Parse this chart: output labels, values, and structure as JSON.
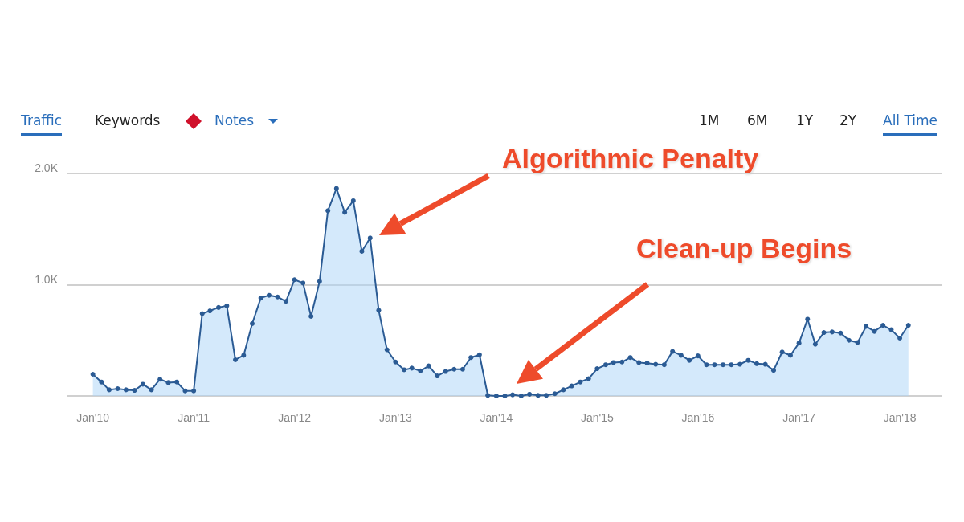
{
  "chart_data": {
    "type": "area",
    "x": [
      "2010-01",
      "2010-02",
      "2010-03",
      "2010-04",
      "2010-05",
      "2010-06",
      "2010-07",
      "2010-08",
      "2010-09",
      "2010-10",
      "2010-11",
      "2010-12",
      "2011-01",
      "2011-02",
      "2011-03",
      "2011-04",
      "2011-05",
      "2011-06",
      "2011-07",
      "2011-08",
      "2011-09",
      "2011-10",
      "2011-11",
      "2011-12",
      "2012-01",
      "2012-02",
      "2012-03",
      "2012-04",
      "2012-05",
      "2012-06",
      "2012-07",
      "2012-08",
      "2012-09",
      "2012-10",
      "2012-11",
      "2012-12",
      "2013-01",
      "2013-02",
      "2013-03",
      "2013-04",
      "2013-05",
      "2013-06",
      "2013-07",
      "2013-08",
      "2013-09",
      "2013-10",
      "2013-11",
      "2013-12",
      "2014-01",
      "2014-02",
      "2014-03",
      "2014-04",
      "2014-05",
      "2014-06",
      "2014-07",
      "2014-08",
      "2014-09",
      "2014-10",
      "2014-11",
      "2014-12",
      "2015-01",
      "2015-02",
      "2015-03",
      "2015-04",
      "2015-05",
      "2015-06",
      "2015-07",
      "2015-08",
      "2015-09",
      "2015-10",
      "2015-11",
      "2015-12",
      "2016-01",
      "2016-02",
      "2016-03",
      "2016-04",
      "2016-05",
      "2016-06",
      "2016-07",
      "2016-08",
      "2016-09",
      "2016-10",
      "2016-11",
      "2016-12",
      "2017-01",
      "2017-02",
      "2017-03",
      "2017-04",
      "2017-05",
      "2017-06",
      "2017-07",
      "2017-08",
      "2017-09",
      "2017-10",
      "2017-11",
      "2017-12",
      "2018-01",
      "2018-02"
    ],
    "series": [
      {
        "color": "#2b5b94",
        "values": [
          195,
          125,
          55,
          65,
          55,
          50,
          105,
          55,
          150,
          120,
          125,
          45,
          45,
          740,
          765,
          795,
          810,
          325,
          365,
          650,
          880,
          905,
          890,
          850,
          1045,
          1015,
          715,
          1030,
          1665,
          1865,
          1650,
          1755,
          1300,
          1420,
          770,
          415,
          305,
          235,
          250,
          225,
          270,
          180,
          220,
          240,
          240,
          345,
          370,
          5,
          0,
          0,
          10,
          0,
          15,
          5,
          5,
          20,
          55,
          90,
          125,
          155,
          245,
          280,
          300,
          305,
          345,
          300,
          295,
          285,
          280,
          400,
          365,
          320,
          360,
          280,
          280,
          280,
          280,
          285,
          320,
          290,
          285,
          230,
          395,
          365,
          475,
          690,
          465,
          570,
          575,
          565,
          500,
          480,
          625,
          580,
          635,
          595,
          520,
          635
        ]
      }
    ],
    "xlim": [
      "2009-10-01",
      "2018-06-01"
    ],
    "xticks": [
      {
        "value": "2010-01",
        "label": "Jan'10"
      },
      {
        "value": "2011-01",
        "label": "Jan'11"
      },
      {
        "value": "2012-01",
        "label": "Jan'12"
      },
      {
        "value": "2013-01",
        "label": "Jan'13"
      },
      {
        "value": "2014-01",
        "label": "Jan'14"
      },
      {
        "value": "2015-01",
        "label": "Jan'15"
      },
      {
        "value": "2016-01",
        "label": "Jan'16"
      },
      {
        "value": "2017-01",
        "label": "Jan'17"
      },
      {
        "value": "2018-01",
        "label": "Jan'18"
      }
    ],
    "ylim": [
      0,
      2000
    ],
    "yticks": [
      {
        "value": 0,
        "label": null
      },
      {
        "value": 1000,
        "label": "1.0K"
      },
      {
        "value": 2000,
        "label": "2.0K"
      }
    ],
    "grid": "y",
    "marker": "circle",
    "annotations": [
      "Algorithmic Penalty",
      "Clean-up Begins",
      "Traffic",
      "Keywords",
      "Notes",
      "1M",
      "6M",
      "1Y",
      "2Y",
      "All Time"
    ]
  }
}
